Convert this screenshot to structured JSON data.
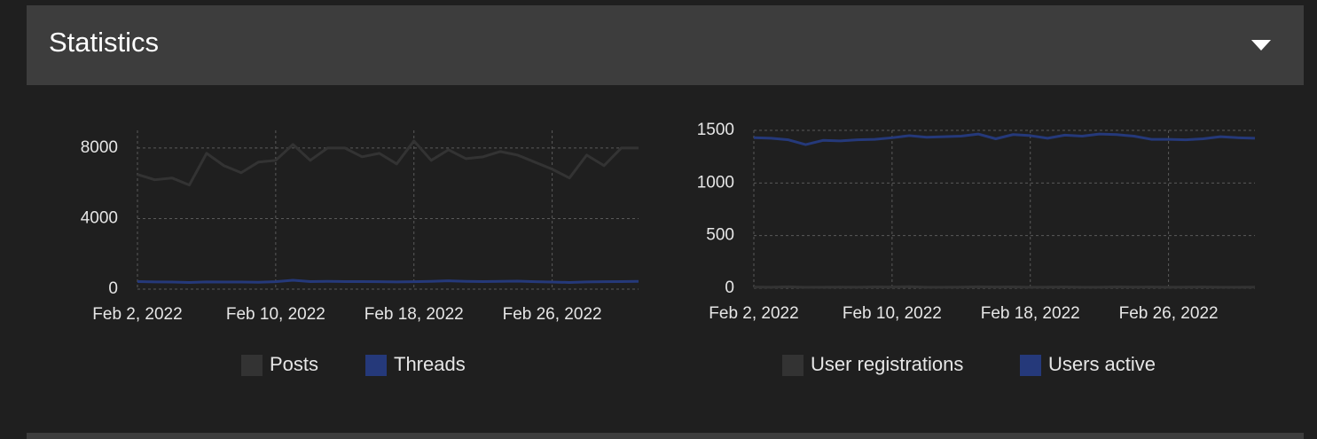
{
  "header": {
    "title": "Statistics"
  },
  "chart_data": [
    {
      "type": "line",
      "x": [
        "2022-02-02",
        "2022-02-03",
        "2022-02-04",
        "2022-02-05",
        "2022-02-06",
        "2022-02-07",
        "2022-02-08",
        "2022-02-09",
        "2022-02-10",
        "2022-02-11",
        "2022-02-12",
        "2022-02-13",
        "2022-02-14",
        "2022-02-15",
        "2022-02-16",
        "2022-02-17",
        "2022-02-18",
        "2022-02-19",
        "2022-02-20",
        "2022-02-21",
        "2022-02-22",
        "2022-02-23",
        "2022-02-24",
        "2022-02-25",
        "2022-02-26",
        "2022-02-27",
        "2022-02-28",
        "2022-03-01",
        "2022-03-02",
        "2022-03-03"
      ],
      "xlim": [
        "2022-02-02",
        "2022-03-03"
      ],
      "xticks": [
        {
          "value": "2022-02-02",
          "label": "Feb 2, 2022"
        },
        {
          "value": "2022-02-10",
          "label": "Feb 10, 2022"
        },
        {
          "value": "2022-02-18",
          "label": "Feb 18, 2022"
        },
        {
          "value": "2022-02-26",
          "label": "Feb 26, 2022"
        }
      ],
      "ylim": [
        0,
        9000
      ],
      "yticks": [
        0,
        4000,
        8000
      ],
      "grid": true,
      "legend": "bottom",
      "series": [
        {
          "name": "Posts",
          "color": "#333333",
          "values": [
            6500,
            6200,
            6300,
            5900,
            7700,
            7000,
            6600,
            7200,
            7300,
            8200,
            7300,
            8000,
            8000,
            7500,
            7700,
            7100,
            8400,
            7300,
            7900,
            7400,
            7500,
            7800,
            7600,
            7200,
            6800,
            6300,
            7600,
            7000,
            8000,
            8000
          ]
        },
        {
          "name": "Threads",
          "color": "#25397a",
          "values": [
            430,
            410,
            400,
            380,
            410,
            400,
            400,
            390,
            420,
            500,
            430,
            440,
            430,
            430,
            420,
            410,
            420,
            440,
            470,
            440,
            430,
            440,
            450,
            420,
            400,
            380,
            410,
            420,
            430,
            440
          ]
        }
      ]
    },
    {
      "type": "line",
      "x": [
        "2022-02-02",
        "2022-02-03",
        "2022-02-04",
        "2022-02-05",
        "2022-02-06",
        "2022-02-07",
        "2022-02-08",
        "2022-02-09",
        "2022-02-10",
        "2022-02-11",
        "2022-02-12",
        "2022-02-13",
        "2022-02-14",
        "2022-02-15",
        "2022-02-16",
        "2022-02-17",
        "2022-02-18",
        "2022-02-19",
        "2022-02-20",
        "2022-02-21",
        "2022-02-22",
        "2022-02-23",
        "2022-02-24",
        "2022-02-25",
        "2022-02-26",
        "2022-02-27",
        "2022-02-28",
        "2022-03-01",
        "2022-03-02",
        "2022-03-03"
      ],
      "xlim": [
        "2022-02-02",
        "2022-03-03"
      ],
      "xticks": [
        {
          "value": "2022-02-02",
          "label": "Feb 2, 2022"
        },
        {
          "value": "2022-02-10",
          "label": "Feb 10, 2022"
        },
        {
          "value": "2022-02-18",
          "label": "Feb 18, 2022"
        },
        {
          "value": "2022-02-26",
          "label": "Feb 26, 2022"
        }
      ],
      "ylim": [
        0,
        1500
      ],
      "yticks": [
        0,
        500,
        1000,
        1500
      ],
      "grid": true,
      "legend": "bottom",
      "series": [
        {
          "name": "User registrations",
          "color": "#333333",
          "values": [
            12,
            10,
            14,
            8,
            9,
            11,
            10,
            13,
            12,
            15,
            10,
            9,
            11,
            14,
            12,
            13,
            10,
            11,
            12,
            10,
            9,
            13,
            11,
            12,
            10,
            11,
            12,
            10,
            9,
            11
          ]
        },
        {
          "name": "Users active",
          "color": "#25397a",
          "values": [
            1430,
            1425,
            1410,
            1365,
            1405,
            1400,
            1410,
            1415,
            1430,
            1450,
            1435,
            1440,
            1445,
            1465,
            1420,
            1460,
            1450,
            1425,
            1455,
            1445,
            1465,
            1460,
            1445,
            1415,
            1415,
            1410,
            1420,
            1440,
            1430,
            1425
          ]
        }
      ]
    }
  ]
}
